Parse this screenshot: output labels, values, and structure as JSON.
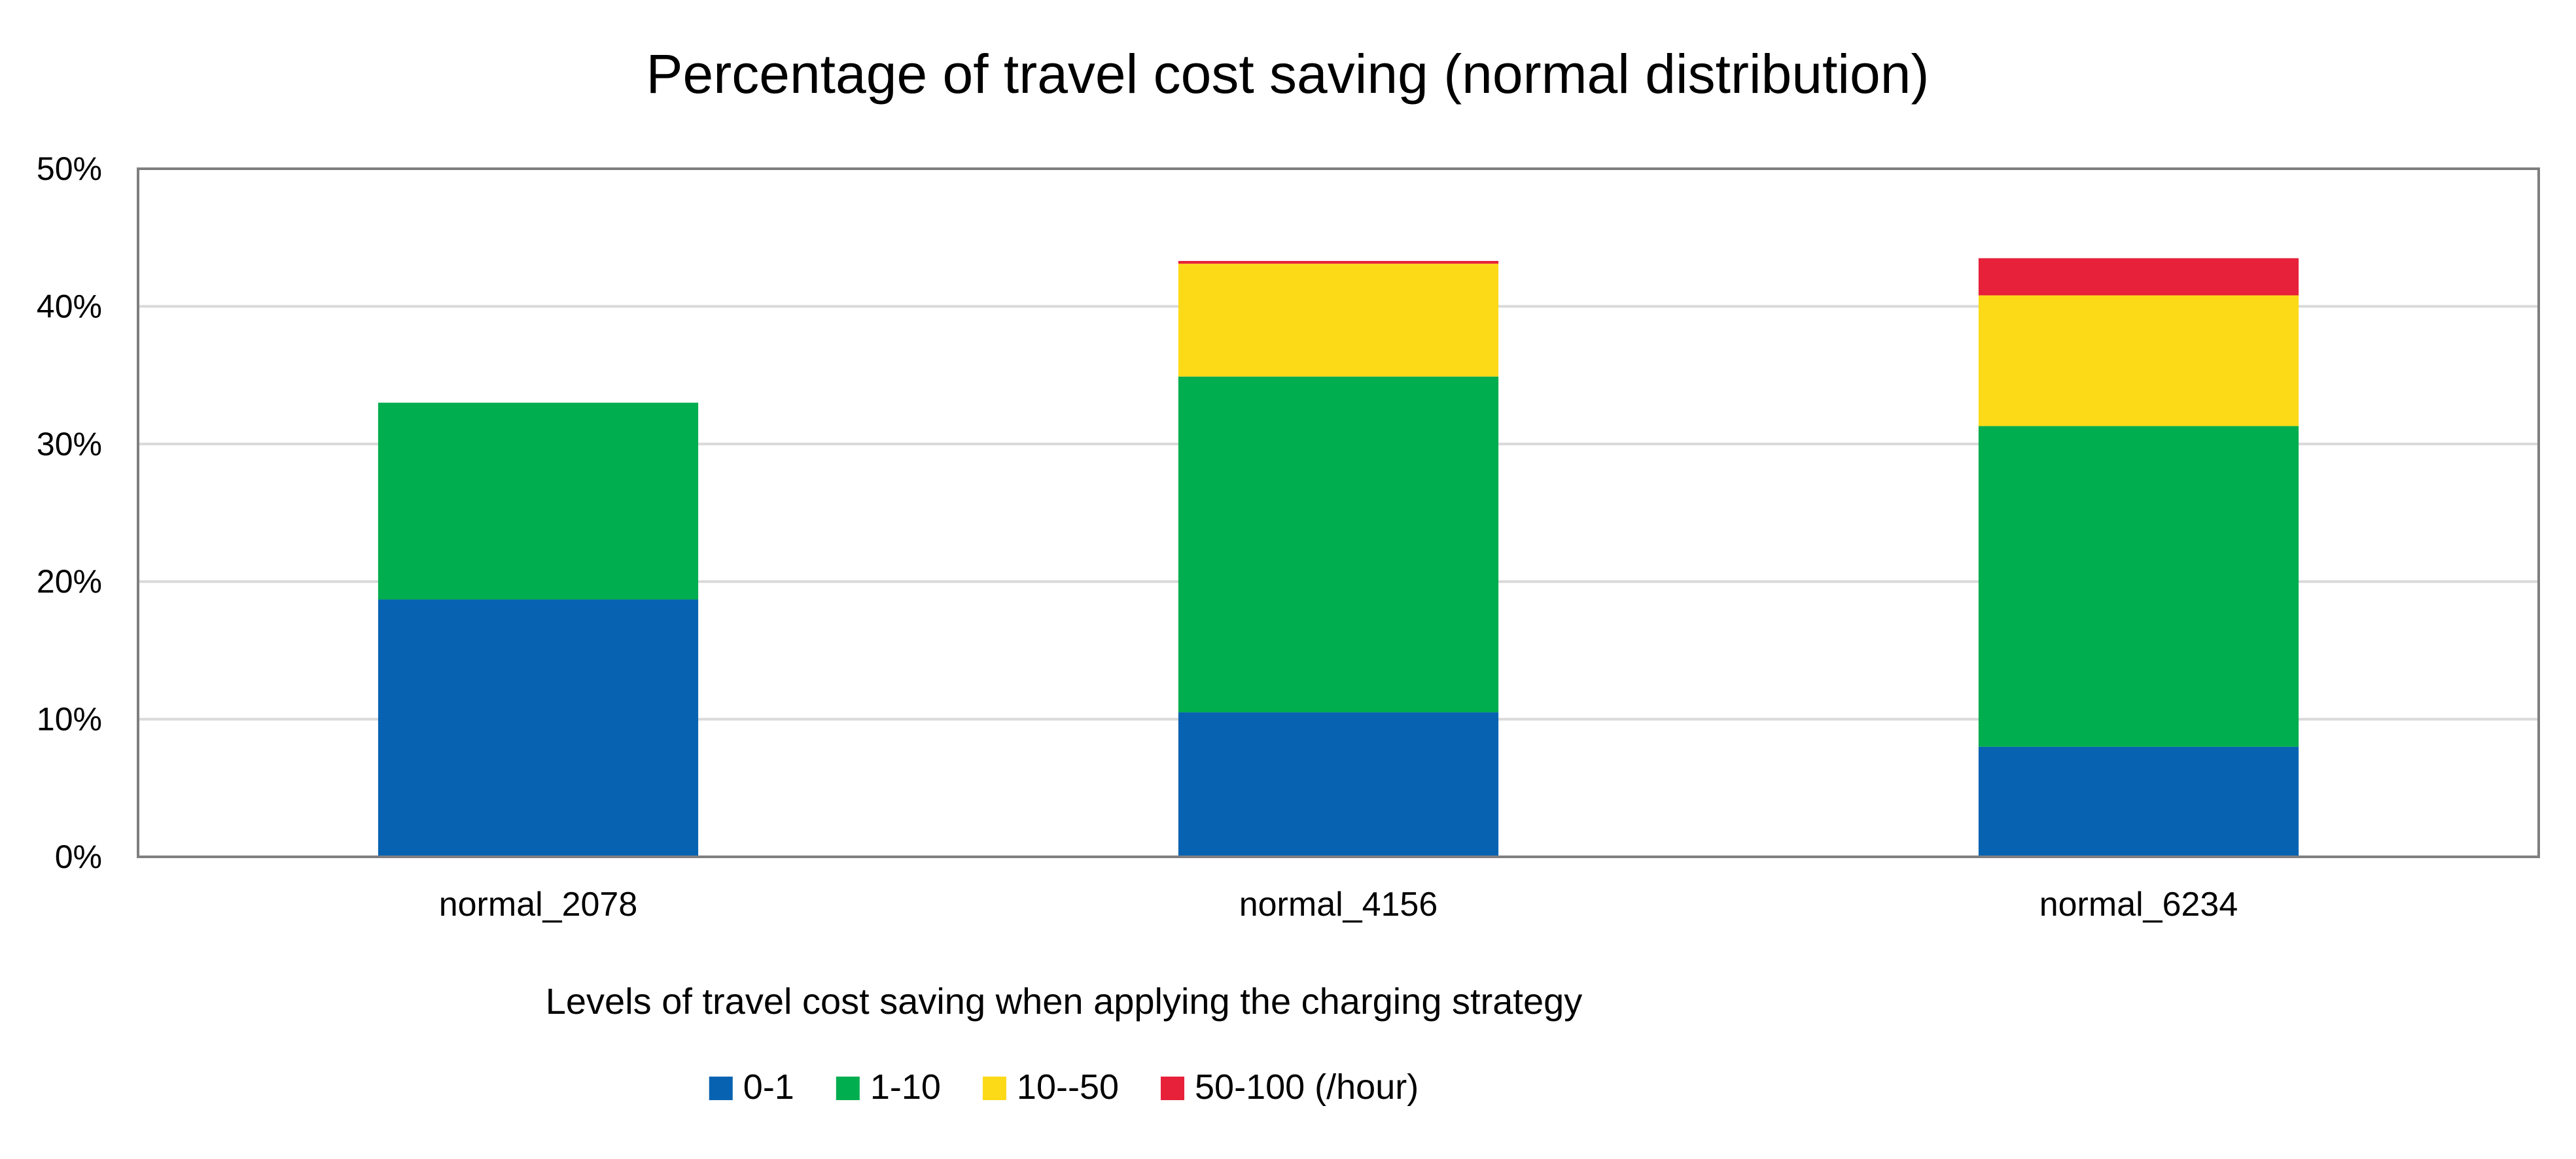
{
  "chart_data": {
    "type": "bar",
    "stacked": true,
    "title": "Percentage of travel cost saving (normal distribution)",
    "xlabel": "Levels of travel cost saving when applying the charging strategy",
    "ylabel": "",
    "ylim": [
      0,
      50
    ],
    "yticks": [
      0,
      10,
      20,
      30,
      40,
      50
    ],
    "ytick_labels": [
      "0%",
      "10%",
      "20%",
      "30%",
      "40%",
      "50%"
    ],
    "grid": true,
    "legend_position": "bottom",
    "categories": [
      "normal_2078",
      "normal_4156",
      "normal_6234"
    ],
    "series": [
      {
        "name": "0-1",
        "color": "#0763B1",
        "values": [
          18.7,
          10.5,
          8.0
        ]
      },
      {
        "name": "1-10",
        "color": "#00AD4F",
        "values": [
          14.3,
          24.4,
          23.3
        ]
      },
      {
        "name": "10--50",
        "color": "#FCDA18",
        "values": [
          0.0,
          8.2,
          9.5
        ]
      },
      {
        "name": "50-100 (/hour)",
        "color": "#E7213A",
        "values": [
          0.0,
          0.2,
          2.7
        ]
      }
    ]
  }
}
